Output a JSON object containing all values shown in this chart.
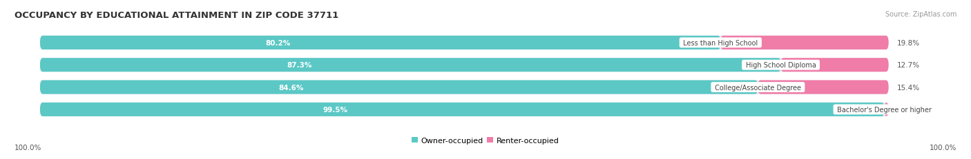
{
  "title": "OCCUPANCY BY EDUCATIONAL ATTAINMENT IN ZIP CODE 37711",
  "source": "Source: ZipAtlas.com",
  "categories": [
    "Less than High School",
    "High School Diploma",
    "College/Associate Degree",
    "Bachelor's Degree or higher"
  ],
  "owner_pct": [
    80.2,
    87.3,
    84.6,
    99.5
  ],
  "renter_pct": [
    19.8,
    12.7,
    15.4,
    0.51
  ],
  "owner_color": "#5BC8C5",
  "renter_color": "#F07CA8",
  "bg_color": "#FFFFFF",
  "bar_bg_color": "#E4E4EA",
  "bar_height": 0.62,
  "bar_gap": 0.18,
  "legend_owner": "Owner-occupied",
  "legend_renter": "Renter-occupied",
  "left_label": "100.0%",
  "right_label": "100.0%"
}
